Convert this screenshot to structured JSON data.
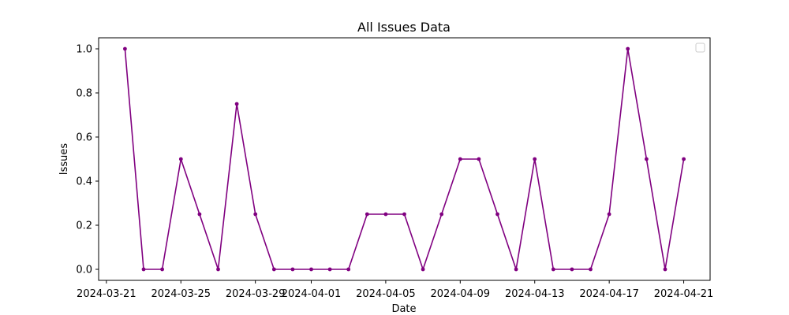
{
  "chart_data": {
    "type": "line",
    "title": "All Issues Data",
    "xlabel": "Date",
    "ylabel": "Issues",
    "x": [
      "2024-03-22",
      "2024-03-23",
      "2024-03-24",
      "2024-03-25",
      "2024-03-26",
      "2024-03-27",
      "2024-03-28",
      "2024-03-29",
      "2024-03-30",
      "2024-03-31",
      "2024-04-01",
      "2024-04-02",
      "2024-04-03",
      "2024-04-04",
      "2024-04-05",
      "2024-04-06",
      "2024-04-07",
      "2024-04-08",
      "2024-04-09",
      "2024-04-10",
      "2024-04-11",
      "2024-04-12",
      "2024-04-13",
      "2024-04-14",
      "2024-04-15",
      "2024-04-16",
      "2024-04-17",
      "2024-04-18",
      "2024-04-19",
      "2024-04-20",
      "2024-04-21"
    ],
    "series": [
      {
        "values": [
          1.0,
          0.0,
          0.0,
          0.5,
          0.25,
          0.0,
          0.75,
          0.25,
          0.0,
          0.0,
          0.0,
          0.0,
          0.0,
          0.25,
          0.25,
          0.25,
          0.0,
          0.25,
          0.5,
          0.5,
          0.25,
          0.0,
          0.5,
          0.0,
          0.0,
          0.0,
          0.25,
          1.0,
          0.5,
          0.0,
          0.5
        ],
        "color": "#800080"
      }
    ],
    "xticks": [
      "2024-03-21",
      "2024-03-25",
      "2024-03-29",
      "2024-04-01",
      "2024-04-05",
      "2024-04-09",
      "2024-04-13",
      "2024-04-17",
      "2024-04-21"
    ],
    "xtick_labels": [
      "2024-03-21",
      "2024-03-25",
      "2024-03-29",
      "2024-04-01",
      "2024-04-05",
      "2024-04-09",
      "2024-04-13",
      "2024-04-17",
      "2024-04-21"
    ],
    "yticks": [
      0.0,
      0.2,
      0.4,
      0.6,
      0.8,
      1.0
    ],
    "ytick_labels": [
      "0.0",
      "0.2",
      "0.4",
      "0.6",
      "0.8",
      "1.0"
    ],
    "xlim": [
      "2024-03-20T14:00",
      "2024-04-22T10:00"
    ],
    "ylim": [
      -0.05,
      1.05
    ],
    "grid": false,
    "legend": {
      "placement": "top-right",
      "entries": []
    }
  }
}
